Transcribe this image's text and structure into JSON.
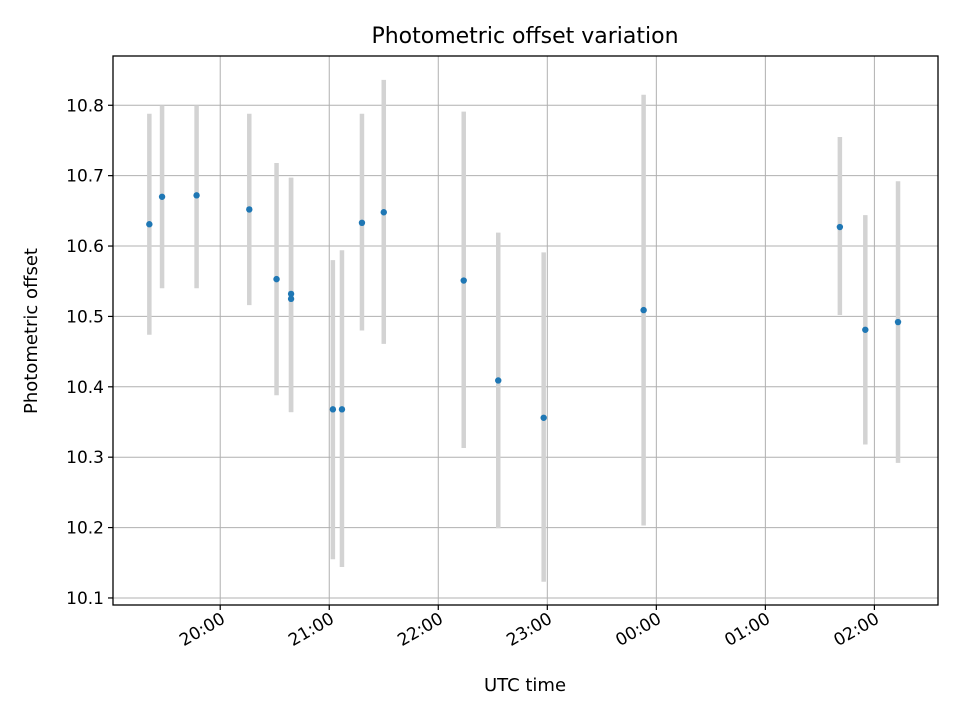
{
  "chart_data": {
    "type": "scatter",
    "title": "Photometric offset variation",
    "xlabel": "UTC time",
    "ylabel": "Photometric offset",
    "x_unit": "UTC clock time (hours continue past midnight)",
    "xlim": [
      "19:01",
      "02:35"
    ],
    "ylim": [
      10.09,
      10.87
    ],
    "xticks": [
      "20:00",
      "21:00",
      "22:00",
      "23:00",
      "00:00",
      "01:00",
      "02:00"
    ],
    "yticks": [
      "10.1",
      "10.2",
      "10.3",
      "10.4",
      "10.5",
      "10.6",
      "10.7",
      "10.8"
    ],
    "grid": true,
    "marker_color": "#1f77b4",
    "errorbar_color": "#d3d3d3",
    "points": [
      {
        "x": "19:21",
        "y": 10.631,
        "low": 10.474,
        "high": 10.788
      },
      {
        "x": "19:28",
        "y": 10.67,
        "low": 10.54,
        "high": 10.8
      },
      {
        "x": "19:47",
        "y": 10.672,
        "low": 10.54,
        "high": 10.8
      },
      {
        "x": "20:16",
        "y": 10.652,
        "low": 10.516,
        "high": 10.788
      },
      {
        "x": "20:31",
        "y": 10.553,
        "low": 10.388,
        "high": 10.718
      },
      {
        "x": "20:39",
        "y": 10.532,
        "low": 10.364,
        "high": 10.697
      },
      {
        "x": "20:39",
        "y": 10.525,
        "low": 10.364,
        "high": 10.697
      },
      {
        "x": "21:02",
        "y": 10.368,
        "low": 10.155,
        "high": 10.58
      },
      {
        "x": "21:07",
        "y": 10.368,
        "low": 10.144,
        "high": 10.594
      },
      {
        "x": "21:18",
        "y": 10.633,
        "low": 10.48,
        "high": 10.788
      },
      {
        "x": "21:30",
        "y": 10.648,
        "low": 10.461,
        "high": 10.836
      },
      {
        "x": "22:14",
        "y": 10.551,
        "low": 10.313,
        "high": 10.791
      },
      {
        "x": "22:33",
        "y": 10.409,
        "low": 10.199,
        "high": 10.619
      },
      {
        "x": "22:58",
        "y": 10.356,
        "low": 10.123,
        "high": 10.591
      },
      {
        "x": "23:53",
        "y": 10.509,
        "low": 10.203,
        "high": 10.815
      },
      {
        "x": "01:41",
        "y": 10.627,
        "low": 10.502,
        "high": 10.755
      },
      {
        "x": "01:55",
        "y": 10.481,
        "low": 10.318,
        "high": 10.644
      },
      {
        "x": "02:13",
        "y": 10.492,
        "low": 10.292,
        "high": 10.692
      }
    ]
  }
}
